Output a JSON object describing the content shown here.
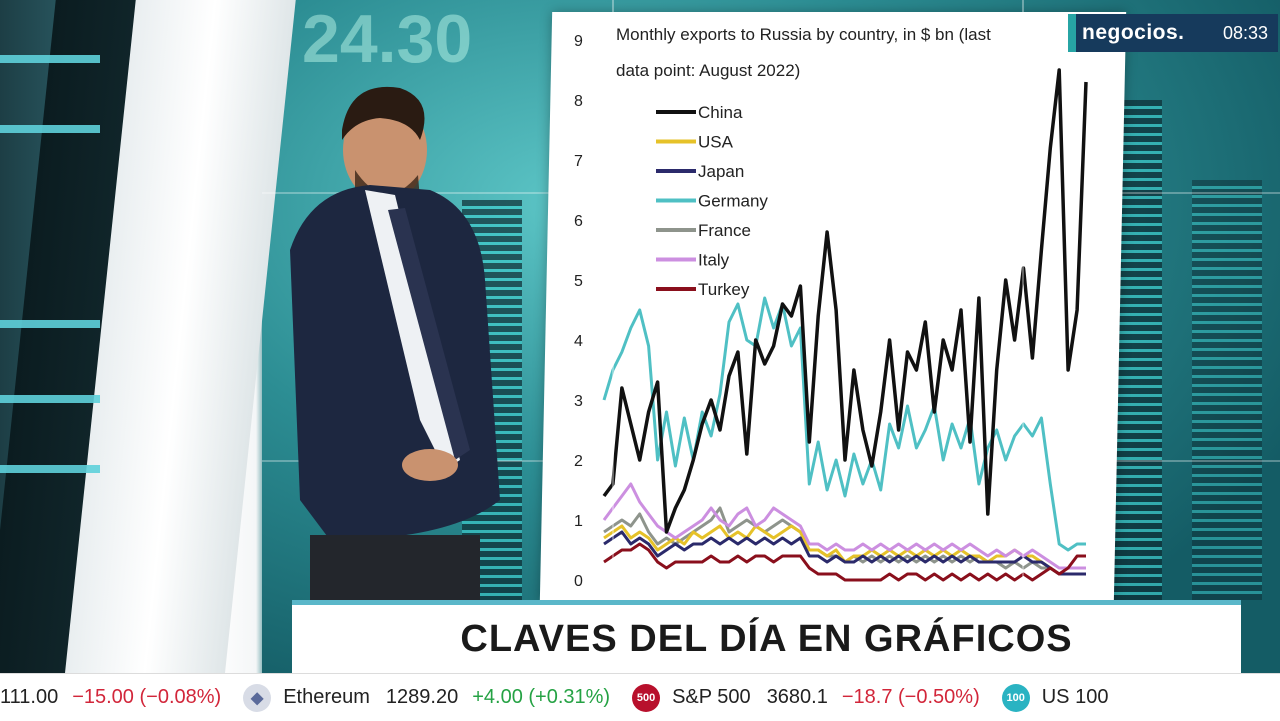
{
  "broadcast": {
    "logo": "negocios.",
    "clock": "08:33",
    "segment_title": "CLAVES DEL DÍA EN GRÁFICOS"
  },
  "chart": {
    "title_line1": "Monthly exports to Russia by country, in $ bn (last",
    "title_line2": "data point: August 2022)",
    "y_ticks": [
      "9",
      "8",
      "7",
      "6",
      "5",
      "4",
      "3",
      "2",
      "1",
      "0"
    ],
    "legend": [
      {
        "name": "China",
        "color": "#111111"
      },
      {
        "name": "USA",
        "color": "#e6c229"
      },
      {
        "name": "Japan",
        "color": "#2b2a6b"
      },
      {
        "name": "Germany",
        "color": "#4fc0c4"
      },
      {
        "name": "France",
        "color": "#8e948c"
      },
      {
        "name": "Italy",
        "color": "#cc8fe0"
      },
      {
        "name": "Turkey",
        "color": "#8a0f1c"
      }
    ]
  },
  "chart_data": {
    "type": "line",
    "title": "Monthly exports to Russia by country, in $ bn (last data point: August 2022)",
    "ylim": [
      0,
      9
    ],
    "series": [
      {
        "name": "China",
        "color": "#111111",
        "values": [
          1.4,
          1.6,
          3.2,
          2.6,
          2.0,
          2.8,
          3.3,
          0.8,
          1.2,
          1.5,
          2.0,
          2.6,
          3.0,
          2.5,
          3.4,
          3.8,
          2.1,
          4.0,
          3.6,
          3.9,
          4.6,
          4.4,
          4.9,
          2.3,
          4.4,
          5.8,
          4.5,
          2.0,
          3.5,
          2.5,
          1.9,
          2.8,
          4.0,
          2.5,
          3.8,
          3.5,
          4.3,
          2.8,
          4.0,
          3.5,
          4.5,
          2.3,
          4.7,
          1.1,
          3.5,
          5.0,
          4.0,
          5.2,
          3.7,
          5.5,
          7.2,
          8.5,
          3.5,
          4.5,
          8.3
        ]
      },
      {
        "name": "Germany",
        "color": "#4fc0c4",
        "values": [
          3.0,
          3.5,
          3.8,
          4.2,
          4.5,
          3.9,
          2.0,
          2.8,
          1.9,
          2.7,
          2.0,
          2.8,
          2.4,
          3.1,
          4.3,
          4.6,
          4.0,
          3.9,
          4.7,
          4.2,
          4.6,
          3.9,
          4.2,
          1.6,
          2.3,
          1.5,
          2.0,
          1.4,
          2.1,
          1.6,
          2.0,
          1.5,
          2.6,
          2.2,
          2.9,
          2.2,
          2.5,
          2.9,
          2.0,
          2.6,
          2.2,
          2.7,
          1.6,
          2.2,
          2.5,
          2.0,
          2.4,
          2.6,
          2.4,
          2.7,
          1.6,
          0.6,
          0.5,
          0.6,
          0.6
        ]
      },
      {
        "name": "France",
        "color": "#8e948c",
        "values": [
          0.8,
          0.9,
          1.0,
          0.9,
          1.1,
          0.8,
          0.6,
          0.7,
          0.6,
          0.7,
          0.8,
          0.9,
          1.0,
          1.2,
          0.8,
          0.9,
          1.0,
          0.9,
          0.8,
          0.9,
          1.0,
          0.9,
          0.8,
          0.5,
          0.5,
          0.4,
          0.4,
          0.3,
          0.4,
          0.3,
          0.4,
          0.3,
          0.4,
          0.3,
          0.4,
          0.3,
          0.4,
          0.3,
          0.4,
          0.3,
          0.4,
          0.3,
          0.4,
          0.3,
          0.3,
          0.2,
          0.3,
          0.2,
          0.3,
          0.2,
          0.2,
          0.1,
          0.1,
          0.1,
          0.1
        ]
      },
      {
        "name": "USA",
        "color": "#e6c229",
        "values": [
          0.7,
          0.8,
          0.9,
          0.7,
          0.8,
          0.7,
          0.5,
          0.6,
          0.7,
          0.6,
          0.8,
          0.7,
          0.8,
          0.9,
          0.7,
          0.8,
          0.7,
          0.9,
          0.8,
          0.7,
          0.8,
          0.9,
          0.8,
          0.5,
          0.5,
          0.4,
          0.5,
          0.3,
          0.4,
          0.4,
          0.5,
          0.4,
          0.5,
          0.4,
          0.5,
          0.4,
          0.5,
          0.4,
          0.5,
          0.4,
          0.5,
          0.4,
          0.4,
          0.3,
          0.4,
          0.4,
          0.5,
          0.4,
          0.4,
          0.3,
          0.2,
          0.1,
          0.1,
          0.1,
          0.1
        ]
      },
      {
        "name": "Japan",
        "color": "#2b2a6b",
        "values": [
          0.6,
          0.7,
          0.8,
          0.6,
          0.7,
          0.6,
          0.4,
          0.5,
          0.6,
          0.5,
          0.6,
          0.6,
          0.7,
          0.6,
          0.7,
          0.6,
          0.7,
          0.6,
          0.7,
          0.6,
          0.7,
          0.6,
          0.7,
          0.4,
          0.4,
          0.3,
          0.4,
          0.3,
          0.3,
          0.4,
          0.3,
          0.4,
          0.3,
          0.4,
          0.3,
          0.4,
          0.3,
          0.4,
          0.3,
          0.4,
          0.3,
          0.4,
          0.3,
          0.3,
          0.3,
          0.3,
          0.3,
          0.4,
          0.3,
          0.3,
          0.2,
          0.1,
          0.1,
          0.1,
          0.1
        ]
      },
      {
        "name": "Italy",
        "color": "#cc8fe0",
        "values": [
          1.0,
          1.2,
          1.4,
          1.6,
          1.3,
          1.1,
          0.9,
          0.8,
          0.7,
          0.8,
          0.9,
          1.0,
          1.2,
          1.0,
          0.9,
          1.1,
          1.2,
          0.9,
          1.0,
          1.2,
          1.1,
          1.0,
          0.9,
          0.6,
          0.6,
          0.5,
          0.6,
          0.5,
          0.5,
          0.6,
          0.5,
          0.6,
          0.5,
          0.6,
          0.5,
          0.6,
          0.5,
          0.6,
          0.5,
          0.6,
          0.5,
          0.6,
          0.5,
          0.4,
          0.5,
          0.4,
          0.5,
          0.4,
          0.5,
          0.4,
          0.3,
          0.2,
          0.2,
          0.2,
          0.2
        ]
      },
      {
        "name": "Turkey",
        "color": "#8a0f1c",
        "values": [
          0.3,
          0.4,
          0.5,
          0.5,
          0.6,
          0.5,
          0.3,
          0.2,
          0.3,
          0.3,
          0.3,
          0.3,
          0.4,
          0.3,
          0.3,
          0.4,
          0.3,
          0.4,
          0.4,
          0.3,
          0.4,
          0.4,
          0.4,
          0.2,
          0.1,
          0.1,
          0.1,
          0.0,
          0.0,
          0.0,
          0.0,
          0.0,
          0.1,
          0.0,
          0.1,
          0.1,
          0.0,
          0.1,
          0.0,
          0.1,
          0.0,
          0.1,
          0.0,
          0.1,
          0.0,
          0.1,
          0.0,
          0.1,
          0.0,
          0.1,
          0.2,
          0.1,
          0.2,
          0.4,
          0.4
        ]
      }
    ]
  },
  "ticker": [
    {
      "name": "",
      "value": "111.00",
      "change": "−15.00 (−0.08%)",
      "dir": "neg",
      "icon": ""
    },
    {
      "name": "Ethereum",
      "value": "1289.20",
      "change": "+4.00 (+0.31%)",
      "dir": "pos",
      "icon": "ethereum-icon",
      "icon_text": "◆"
    },
    {
      "name": "S&P 500",
      "value": "3680.1",
      "change": "−18.7 (−0.50%)",
      "dir": "neg",
      "icon": "sp500-icon",
      "icon_text": "500"
    },
    {
      "name": "US 100",
      "value": "",
      "change": "",
      "dir": "pos",
      "icon": "us100-icon",
      "icon_text": "100"
    }
  ]
}
